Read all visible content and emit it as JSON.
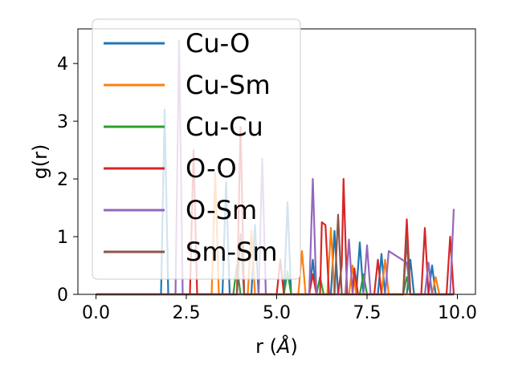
{
  "chart_data": {
    "type": "line",
    "xlabel": "r (",
    "xlabel_unit": "Å",
    "xlabel_close": ")",
    "ylabel": "g(r)",
    "xlim": [
      -0.5,
      10.5
    ],
    "ylim": [
      0,
      4.6
    ],
    "xticks": [
      0.0,
      2.5,
      5.0,
      7.5,
      10.0
    ],
    "xtick_labels": [
      "0.0",
      "2.5",
      "5.0",
      "7.5",
      "10.0"
    ],
    "yticks": [
      0,
      1,
      2,
      3,
      4
    ],
    "ytick_labels": [
      "0",
      "1",
      "2",
      "3",
      "4"
    ],
    "grid": false,
    "legend_position": "upper-left",
    "series": [
      {
        "name": "Cu-O",
        "color": "#1f77b4",
        "points": [
          [
            0,
            0
          ],
          [
            1.8,
            0
          ],
          [
            1.9,
            3.2
          ],
          [
            2.0,
            0
          ],
          [
            3.5,
            0
          ],
          [
            3.6,
            1.95
          ],
          [
            3.7,
            0
          ],
          [
            4.3,
            0
          ],
          [
            4.4,
            1.2
          ],
          [
            4.5,
            0
          ],
          [
            5.2,
            0
          ],
          [
            5.3,
            1.6
          ],
          [
            5.4,
            0
          ],
          [
            5.9,
            0
          ],
          [
            6.0,
            0.6
          ],
          [
            6.1,
            0
          ],
          [
            6.5,
            0
          ],
          [
            6.6,
            1.1
          ],
          [
            6.7,
            0
          ],
          [
            7.2,
            0
          ],
          [
            7.3,
            0.9
          ],
          [
            7.4,
            0
          ],
          [
            7.8,
            0
          ],
          [
            7.9,
            0.7
          ],
          [
            8.0,
            0
          ],
          [
            8.6,
            0
          ],
          [
            8.7,
            0.6
          ],
          [
            8.8,
            0
          ],
          [
            9.2,
            0
          ],
          [
            9.3,
            0.5
          ],
          [
            9.4,
            0
          ],
          [
            9.9,
            0
          ]
        ]
      },
      {
        "name": "Cu-Sm",
        "color": "#ff7f0e",
        "points": [
          [
            0,
            0
          ],
          [
            3.2,
            0
          ],
          [
            3.3,
            2.1
          ],
          [
            3.4,
            0
          ],
          [
            4.2,
            0
          ],
          [
            4.3,
            1.1
          ],
          [
            4.4,
            0
          ],
          [
            5.6,
            0
          ],
          [
            5.7,
            0.75
          ],
          [
            5.8,
            0
          ],
          [
            6.4,
            0
          ],
          [
            6.5,
            1.15
          ],
          [
            6.6,
            0
          ],
          [
            7.0,
            0
          ],
          [
            7.1,
            0.5
          ],
          [
            7.2,
            0
          ],
          [
            7.9,
            0
          ],
          [
            8.0,
            0.6
          ],
          [
            8.1,
            0
          ],
          [
            9.3,
            0
          ],
          [
            9.4,
            0.3
          ],
          [
            9.5,
            0
          ],
          [
            9.9,
            0
          ]
        ]
      },
      {
        "name": "Cu-Cu",
        "color": "#2ca02c",
        "points": [
          [
            0,
            0
          ],
          [
            3.8,
            0
          ],
          [
            3.9,
            0.5
          ],
          [
            4.0,
            0
          ],
          [
            5.2,
            0
          ],
          [
            5.3,
            0.4
          ],
          [
            5.4,
            0
          ],
          [
            6.1,
            0
          ],
          [
            6.2,
            0.3
          ],
          [
            6.3,
            0
          ],
          [
            7.3,
            0
          ],
          [
            7.4,
            0.35
          ],
          [
            7.5,
            0
          ],
          [
            8.5,
            0
          ],
          [
            8.6,
            0.3
          ],
          [
            8.7,
            0
          ],
          [
            9.9,
            0
          ]
        ]
      },
      {
        "name": "O-O",
        "color": "#d62728",
        "points": [
          [
            0,
            0
          ],
          [
            2.6,
            0
          ],
          [
            2.7,
            2.5
          ],
          [
            2.8,
            0
          ],
          [
            3.9,
            0
          ],
          [
            4.0,
            2.9
          ],
          [
            4.1,
            0
          ],
          [
            5.0,
            0
          ],
          [
            5.1,
            0.6
          ],
          [
            5.2,
            0
          ],
          [
            5.9,
            0
          ],
          [
            6.0,
            0.35
          ],
          [
            6.1,
            0
          ],
          [
            6.2,
            0
          ],
          [
            6.25,
            1.25
          ],
          [
            6.35,
            1.2
          ],
          [
            6.45,
            0
          ],
          [
            6.7,
            0
          ],
          [
            6.8,
            0.5
          ],
          [
            6.85,
            2.0
          ],
          [
            6.95,
            0
          ],
          [
            7.1,
            0
          ],
          [
            7.15,
            0.45
          ],
          [
            7.25,
            0
          ],
          [
            7.7,
            0
          ],
          [
            7.8,
            0.6
          ],
          [
            7.9,
            0
          ],
          [
            8.5,
            0
          ],
          [
            8.6,
            1.3
          ],
          [
            8.7,
            0
          ],
          [
            9.0,
            0
          ],
          [
            9.1,
            1.15
          ],
          [
            9.2,
            0
          ],
          [
            9.7,
            0
          ],
          [
            9.8,
            1.0
          ],
          [
            9.9,
            0
          ]
        ]
      },
      {
        "name": "O-Sm",
        "color": "#9467bd",
        "points": [
          [
            0,
            0
          ],
          [
            2.2,
            0
          ],
          [
            2.3,
            4.4
          ],
          [
            2.4,
            0
          ],
          [
            4.5,
            0
          ],
          [
            4.6,
            2.35
          ],
          [
            4.7,
            0
          ],
          [
            5.9,
            0
          ],
          [
            6.0,
            2.0
          ],
          [
            6.1,
            0
          ],
          [
            6.9,
            0
          ],
          [
            7.0,
            0.95
          ],
          [
            7.1,
            0
          ],
          [
            7.4,
            0
          ],
          [
            7.5,
            0.85
          ],
          [
            7.6,
            0
          ],
          [
            8.0,
            0
          ],
          [
            8.1,
            0.75
          ],
          [
            8.6,
            0.55
          ],
          [
            8.7,
            0
          ],
          [
            9.1,
            0
          ],
          [
            9.2,
            0.55
          ],
          [
            9.3,
            0
          ],
          [
            9.8,
            0
          ],
          [
            9.9,
            1.48
          ]
        ]
      },
      {
        "name": "Sm-Sm",
        "color": "#8c564b",
        "points": [
          [
            0,
            0
          ],
          [
            3.9,
            0
          ],
          [
            4.0,
            1.05
          ],
          [
            4.1,
            0
          ],
          [
            6.6,
            0
          ],
          [
            6.7,
            1.38
          ],
          [
            6.8,
            0
          ],
          [
            8.5,
            0
          ],
          [
            8.6,
            0.95
          ],
          [
            8.7,
            0
          ],
          [
            9.9,
            0
          ]
        ]
      }
    ]
  }
}
